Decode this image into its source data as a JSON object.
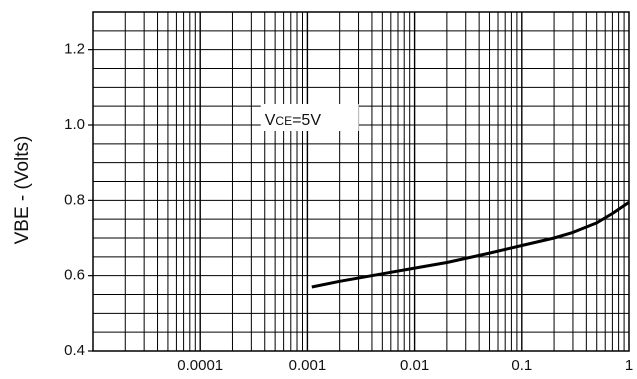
{
  "chart_data": {
    "type": "line",
    "title": "",
    "xlabel": "",
    "ylabel": "VBE - (Volts)",
    "xscale": "log",
    "xlim": [
      1e-05,
      1
    ],
    "ylim": [
      0.4,
      1.3
    ],
    "grid": true,
    "xticks": [
      {
        "value": 0.0001,
        "label": "0.0001"
      },
      {
        "value": 0.001,
        "label": "0.001"
      },
      {
        "value": 0.01,
        "label": "0.01"
      },
      {
        "value": 0.1,
        "label": "0.1"
      },
      {
        "value": 1,
        "label": "1"
      }
    ],
    "yticks": [
      {
        "value": 0.4,
        "label": "0.4"
      },
      {
        "value": 0.6,
        "label": "0.6"
      },
      {
        "value": 0.8,
        "label": "0.8"
      },
      {
        "value": 1.0,
        "label": "1.0"
      },
      {
        "value": 1.2,
        "label": "1.2"
      }
    ],
    "annotation": {
      "main": "V",
      "sub": "CE",
      "rest": "=5V",
      "x": 0.0004,
      "y": 1.0
    },
    "series": [
      {
        "name": "",
        "x": [
          0.0011,
          0.002,
          0.005,
          0.01,
          0.02,
          0.05,
          0.1,
          0.2,
          0.3,
          0.5,
          0.7,
          1.0
        ],
        "values": [
          0.57,
          0.585,
          0.605,
          0.62,
          0.635,
          0.66,
          0.68,
          0.7,
          0.715,
          0.74,
          0.765,
          0.795
        ]
      }
    ]
  }
}
